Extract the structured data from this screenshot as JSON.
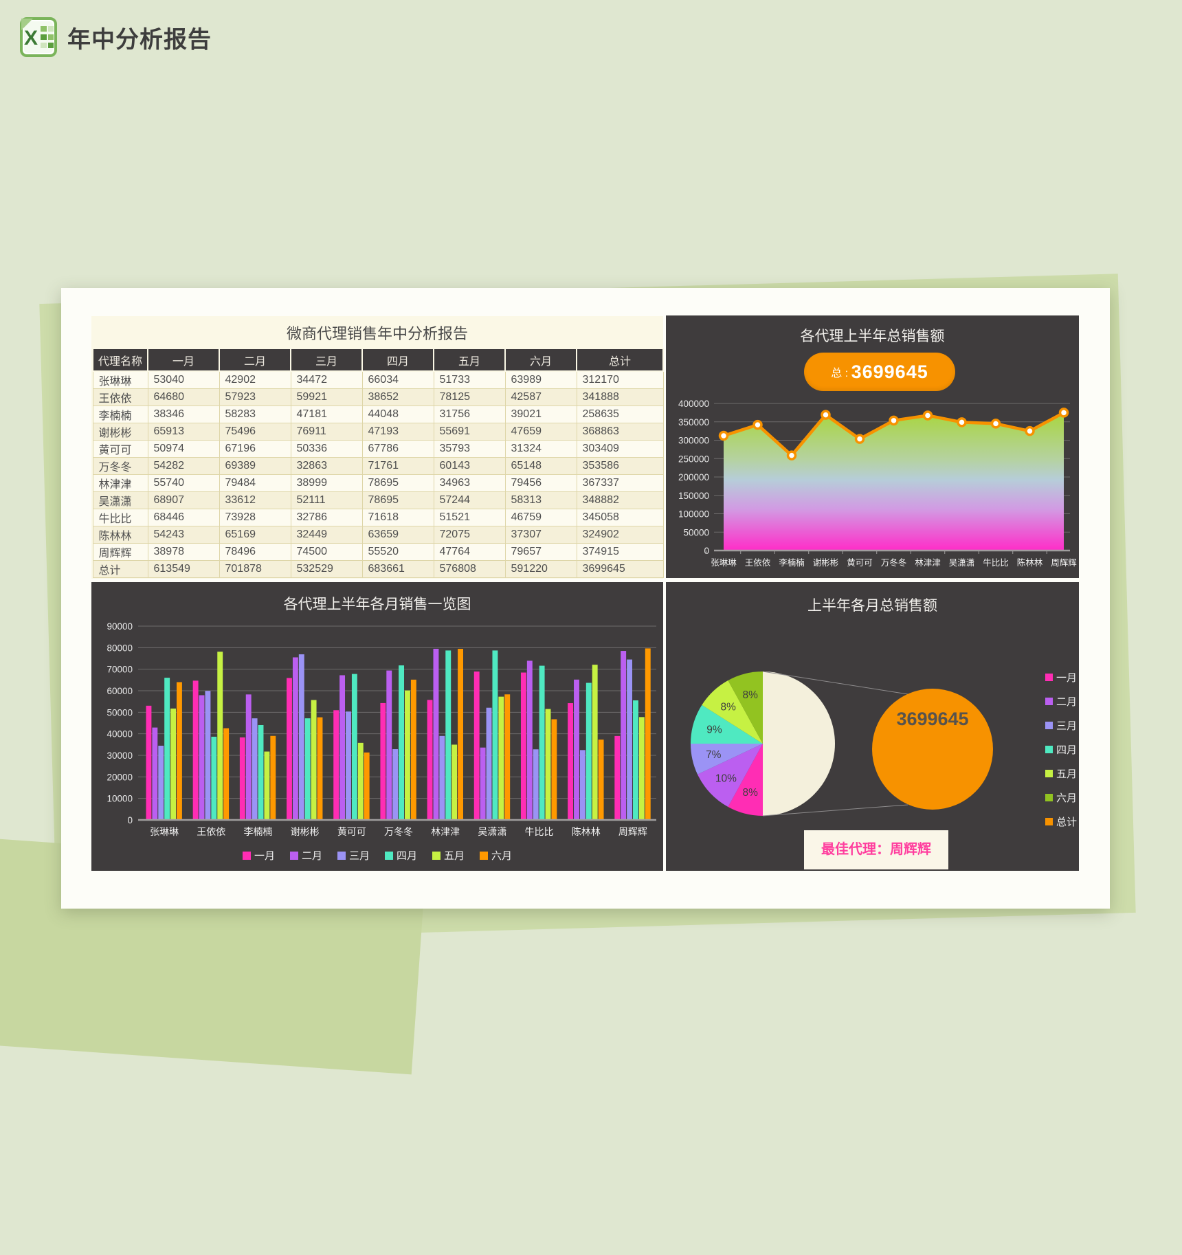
{
  "page": {
    "title": "年中分析报告"
  },
  "table": {
    "title": "微商代理销售年中分析报告",
    "columns": [
      "代理名称",
      "一月",
      "二月",
      "三月",
      "四月",
      "五月",
      "六月",
      "总计"
    ],
    "rows": [
      [
        "张琳琳",
        53040,
        42902,
        34472,
        66034,
        51733,
        63989,
        312170
      ],
      [
        "王依依",
        64680,
        57923,
        59921,
        38652,
        78125,
        42587,
        341888
      ],
      [
        "李楠楠",
        38346,
        58283,
        47181,
        44048,
        31756,
        39021,
        258635
      ],
      [
        "谢彬彬",
        65913,
        75496,
        76911,
        47193,
        55691,
        47659,
        368863
      ],
      [
        "黄可可",
        50974,
        67196,
        50336,
        67786,
        35793,
        31324,
        303409
      ],
      [
        "万冬冬",
        54282,
        69389,
        32863,
        71761,
        60143,
        65148,
        353586
      ],
      [
        "林津津",
        55740,
        79484,
        38999,
        78695,
        34963,
        79456,
        367337
      ],
      [
        "吴潇潇",
        68907,
        33612,
        52111,
        78695,
        57244,
        58313,
        348882
      ],
      [
        "牛比比",
        68446,
        73928,
        32786,
        71618,
        51521,
        46759,
        345058
      ],
      [
        "陈林林",
        54243,
        65169,
        32449,
        63659,
        72075,
        37307,
        324902
      ],
      [
        "周辉辉",
        38978,
        78496,
        74500,
        55520,
        47764,
        79657,
        374915
      ]
    ],
    "total_row": [
      "总计",
      613549,
      701878,
      532529,
      683661,
      576808,
      591220,
      3699645
    ]
  },
  "chart_data": [
    {
      "type": "area",
      "title": "各代理上半年总销售额",
      "badge_label": "总 : ",
      "badge_value": "3699645",
      "categories": [
        "张琳琳",
        "王依依",
        "李楠楠",
        "谢彬彬",
        "黄可可",
        "万冬冬",
        "林津津",
        "吴潇潇",
        "牛比比",
        "陈林林",
        "周辉辉"
      ],
      "values": [
        312170,
        341888,
        258635,
        368863,
        303409,
        353586,
        367337,
        348882,
        345058,
        324902,
        374915
      ],
      "ylim": [
        0,
        400000
      ],
      "yticks": [
        0,
        50000,
        100000,
        150000,
        200000,
        250000,
        300000,
        350000,
        400000
      ],
      "grid": true,
      "legend_position": "none",
      "line_color": "#f79200",
      "marker_fill": "#ffffff",
      "area_gradient": [
        "#a6d62c",
        "#b5d2a0",
        "#b6cdd9",
        "#d29ae3",
        "#ff2cc8"
      ]
    },
    {
      "type": "bar",
      "title": "各代理上半年各月销售一览图",
      "categories": [
        "张琳琳",
        "王依依",
        "李楠楠",
        "谢彬彬",
        "黄可可",
        "万冬冬",
        "林津津",
        "吴潇潇",
        "牛比比",
        "陈林林",
        "周辉辉"
      ],
      "series": [
        {
          "name": "一月",
          "color": "#ff2db4",
          "values": [
            53040,
            64680,
            38346,
            65913,
            50974,
            54282,
            55740,
            68907,
            68446,
            54243,
            38978
          ]
        },
        {
          "name": "二月",
          "color": "#bb5ff0",
          "values": [
            42902,
            57923,
            58283,
            75496,
            67196,
            69389,
            79484,
            33612,
            73928,
            65169,
            78496
          ]
        },
        {
          "name": "三月",
          "color": "#9b93f5",
          "values": [
            34472,
            59921,
            47181,
            76911,
            50336,
            32863,
            38999,
            52111,
            32786,
            32449,
            74500
          ]
        },
        {
          "name": "四月",
          "color": "#4fe9c1",
          "values": [
            66034,
            38652,
            44048,
            47193,
            67786,
            71761,
            78695,
            78695,
            71618,
            63659,
            55520
          ]
        },
        {
          "name": "五月",
          "color": "#c6f143",
          "values": [
            51733,
            78125,
            31756,
            55691,
            35793,
            60143,
            34963,
            57244,
            51521,
            72075,
            47764
          ]
        },
        {
          "name": "六月",
          "color": "#ff9900",
          "values": [
            63989,
            42587,
            39021,
            47659,
            31324,
            65148,
            79456,
            58313,
            46759,
            37307,
            79657
          ]
        }
      ],
      "ylim": [
        0,
        90000
      ],
      "yticks": [
        0,
        10000,
        20000,
        30000,
        40000,
        50000,
        60000,
        70000,
        80000,
        90000
      ],
      "grid": true,
      "legend_position": "bottom"
    },
    {
      "type": "pie",
      "title": "上半年各月总销售额",
      "slices": [
        {
          "name": "总计",
          "pct": 50,
          "color": "#f4f0dc",
          "label": ""
        },
        {
          "name": "一月",
          "pct": 8,
          "color": "#ff2db4",
          "label": "8%"
        },
        {
          "name": "二月",
          "pct": 10,
          "color": "#bb5ff0",
          "label": "10%"
        },
        {
          "name": "三月",
          "pct": 7,
          "color": "#9b93f5",
          "label": "7%"
        },
        {
          "name": "四月",
          "pct": 9,
          "color": "#4fe9c1",
          "label": "9%"
        },
        {
          "name": "五月",
          "pct": 8,
          "color": "#c6f143",
          "label": "8%"
        },
        {
          "name": "六月",
          "pct": 8,
          "color": "#92c321",
          "label": "8%"
        }
      ],
      "legend": [
        {
          "name": "一月",
          "color": "#ff2db4"
        },
        {
          "name": "二月",
          "color": "#bb5ff0"
        },
        {
          "name": "三月",
          "color": "#9b93f5"
        },
        {
          "name": "四月",
          "color": "#4fe9c1"
        },
        {
          "name": "五月",
          "color": "#c6f143"
        },
        {
          "name": "六月",
          "color": "#92c321"
        },
        {
          "name": "总计",
          "color": "#f79200"
        }
      ],
      "center_value": "3699645",
      "center_circle_color": "#f79200",
      "callout": "最佳代理：周辉辉",
      "legend_position": "right"
    }
  ]
}
